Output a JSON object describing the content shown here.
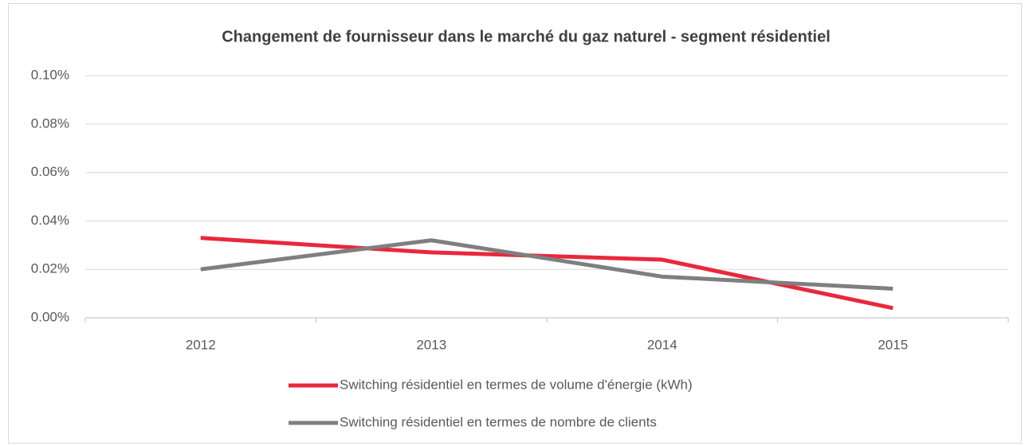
{
  "chart_data": {
    "type": "line",
    "title": "Changement de fournisseur dans le marché du gaz naturel - segment résidentiel",
    "categories": [
      "2012",
      "2013",
      "2014",
      "2015"
    ],
    "series": [
      {
        "name": "Switching résidentiel en termes de volume d'énergie (kWh)",
        "color": "#e8283c",
        "values": [
          0.033,
          0.027,
          0.024,
          0.004
        ]
      },
      {
        "name": "Switching résidentiel en termes de nombre de clients",
        "color": "#7f7f7f",
        "values": [
          0.02,
          0.032,
          0.017,
          0.012
        ]
      }
    ],
    "ylim": [
      0,
      0.1
    ],
    "yticks": [
      {
        "value": 0,
        "label": "0.00%"
      },
      {
        "value": 0.02,
        "label": "0.02%"
      },
      {
        "value": 0.04,
        "label": "0.04%"
      },
      {
        "value": 0.06,
        "label": "0.06%"
      },
      {
        "value": 0.08,
        "label": "0.08%"
      },
      {
        "value": 0.1,
        "label": "0.10%"
      }
    ],
    "grid": true
  }
}
